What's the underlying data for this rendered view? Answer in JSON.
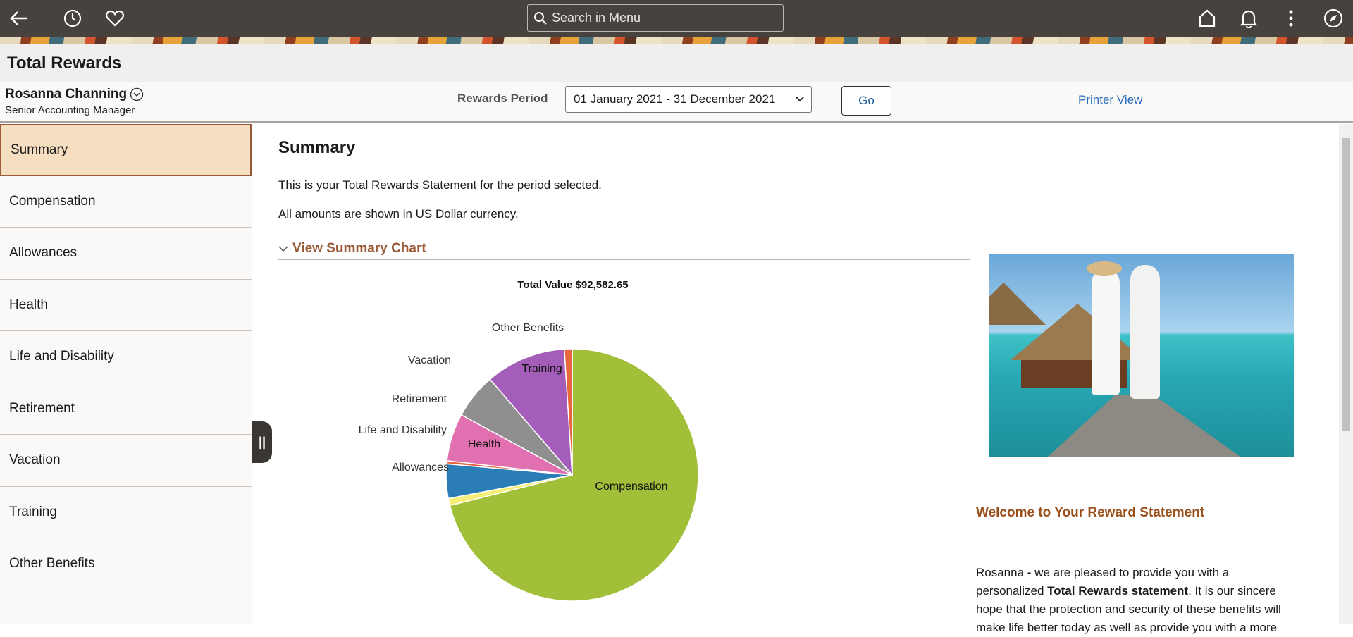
{
  "topbar": {
    "search_placeholder": "Search in Menu",
    "icons": [
      "back-arrow-icon",
      "history-icon",
      "favorites-heart-icon",
      "home-icon",
      "bell-icon",
      "more-dots-icon",
      "compass-icon"
    ]
  },
  "page_title": "Total Rewards",
  "user": {
    "name": "Rosanna Channing",
    "title": "Senior Accounting Manager"
  },
  "rewards_period": {
    "label": "Rewards Period",
    "selected": "01 January 2021 - 31 December 2021",
    "go_label": "Go",
    "printer_view": "Printer View"
  },
  "sidebar": {
    "items": [
      {
        "label": "Summary"
      },
      {
        "label": "Compensation"
      },
      {
        "label": "Allowances"
      },
      {
        "label": "Health"
      },
      {
        "label": "Life and Disability"
      },
      {
        "label": "Retirement"
      },
      {
        "label": "Vacation"
      },
      {
        "label": "Training"
      },
      {
        "label": "Other Benefits"
      }
    ],
    "active": 0
  },
  "main": {
    "heading": "Summary",
    "line1": "This is your Total Rewards Statement for the period selected.",
    "line2": "All amounts are shown in US Dollar currency.",
    "chart_toggle": "View Summary Chart",
    "welcome_heading": "Welcome to Your Reward Statement",
    "para_name": "Rosanna",
    "para_dash": " - ",
    "para_a": "we are pleased to provide you with a personalized ",
    "para_bold": "Total Rewards statement",
    "para_b": ". It is our sincere hope that the protection and security of these benefits will make life better today as well as provide you with a more"
  },
  "chart_data": {
    "type": "pie",
    "title": "Total Value $92,582.65",
    "unit": "percent of total (estimated)",
    "categories": [
      "Compensation",
      "Allowances",
      "Health",
      "Life and Disability",
      "Retirement",
      "Vacation",
      "Training",
      "Other Benefits"
    ],
    "values": [
      71.1,
      0.9,
      4.4,
      0.4,
      6.1,
      5.8,
      10.3,
      1.0
    ],
    "colors": [
      "#a2bf39",
      "#f5ef7a",
      "#2a7db5",
      "#e8663d",
      "#e070b0",
      "#8f8f8f",
      "#a45eb9",
      "#e8663d"
    ]
  }
}
